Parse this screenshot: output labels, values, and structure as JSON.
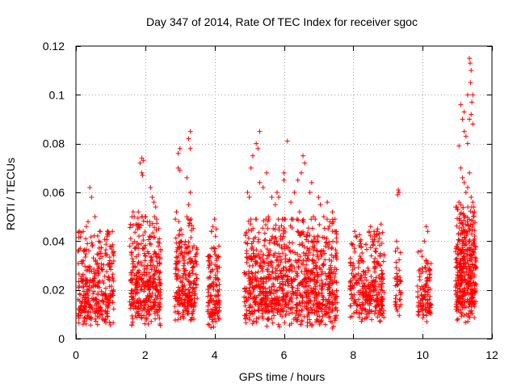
{
  "chart_data": {
    "type": "scatter",
    "title": "Day 347 of 2014, Rate Of TEC Index for receiver sgoc",
    "xlabel": "GPS time / hours",
    "ylabel": "ROTI / TECUs",
    "xlim": [
      0,
      12
    ],
    "ylim": [
      0,
      0.12
    ],
    "xticks": [
      0,
      2,
      4,
      6,
      8,
      10,
      12
    ],
    "yticks": [
      0,
      0.02,
      0.04,
      0.06,
      0.08,
      0.1,
      0.12
    ],
    "ytick_labels": [
      "0",
      "0.02",
      "0.04",
      "0.06",
      "0.08",
      "0.1",
      "0.12"
    ],
    "grid": true,
    "marker": "+",
    "color": "#ff0000",
    "series": [
      {
        "name": "ROTI",
        "clusters": [
          {
            "x_range": [
              0.05,
              1.1
            ],
            "y_range": [
              0.004,
              0.04
            ],
            "count": 340,
            "outliers": [
              [
                0.4,
                0.062
              ],
              [
                0.45,
                0.058
              ],
              [
                0.55,
                0.05
              ],
              [
                0.3,
                0.046
              ],
              [
                0.7,
                0.044
              ],
              [
                0.9,
                0.042
              ],
              [
                0.35,
                0.048
              ]
            ]
          },
          {
            "x_range": [
              1.55,
              2.45
            ],
            "y_range": [
              0.004,
              0.046
            ],
            "count": 360,
            "outliers": [
              [
                1.9,
                0.074
              ],
              [
                1.85,
                0.072
              ],
              [
                1.95,
                0.073
              ],
              [
                1.9,
                0.068
              ],
              [
                1.92,
                0.067
              ],
              [
                2.15,
                0.062
              ],
              [
                2.2,
                0.058
              ],
              [
                2.25,
                0.056
              ],
              [
                2.3,
                0.054
              ],
              [
                1.8,
                0.052
              ],
              [
                1.65,
                0.052
              ],
              [
                2.0,
                0.05
              ]
            ]
          },
          {
            "x_range": [
              2.85,
              3.5
            ],
            "y_range": [
              0.006,
              0.045
            ],
            "count": 250,
            "outliers": [
              [
                3.3,
                0.085
              ],
              [
                3.25,
                0.082
              ],
              [
                3.0,
                0.078
              ],
              [
                2.95,
                0.076
              ],
              [
                3.3,
                0.078
              ],
              [
                2.95,
                0.07
              ],
              [
                3.0,
                0.069
              ],
              [
                3.2,
                0.066
              ],
              [
                3.3,
                0.06
              ],
              [
                3.25,
                0.055
              ],
              [
                3.2,
                0.05
              ],
              [
                2.9,
                0.052
              ]
            ]
          },
          {
            "x_range": [
              3.8,
              4.15
            ],
            "y_range": [
              0.004,
              0.04
            ],
            "count": 130,
            "outliers": [
              [
                4.0,
                0.049
              ],
              [
                3.95,
                0.046
              ],
              [
                4.05,
                0.045
              ]
            ]
          },
          {
            "x_range": [
              4.85,
              7.55
            ],
            "y_range": [
              0.004,
              0.045
            ],
            "count": 980,
            "outliers": [
              [
                5.3,
                0.085
              ],
              [
                5.2,
                0.08
              ],
              [
                5.25,
                0.078
              ],
              [
                5.1,
                0.075
              ],
              [
                5.05,
                0.07
              ],
              [
                6.1,
                0.081
              ],
              [
                6.55,
                0.075
              ],
              [
                6.6,
                0.072
              ],
              [
                6.5,
                0.068
              ],
              [
                5.5,
                0.068
              ],
              [
                6.0,
                0.065
              ],
              [
                6.0,
                0.068
              ],
              [
                6.4,
                0.065
              ],
              [
                6.3,
                0.06
              ],
              [
                5.8,
                0.06
              ],
              [
                5.85,
                0.058
              ],
              [
                7.0,
                0.058
              ],
              [
                7.05,
                0.055
              ],
              [
                7.25,
                0.056
              ],
              [
                6.8,
                0.064
              ],
              [
                5.4,
                0.062
              ],
              [
                5.3,
                0.064
              ],
              [
                4.95,
                0.06
              ],
              [
                5.0,
                0.058
              ],
              [
                5.65,
                0.058
              ],
              [
                6.2,
                0.056
              ],
              [
                6.75,
                0.06
              ],
              [
                7.4,
                0.052
              ],
              [
                6.85,
                0.05
              ],
              [
                5.75,
                0.055
              ],
              [
                6.45,
                0.052
              ],
              [
                5.55,
                0.05
              ],
              [
                7.15,
                0.05
              ]
            ]
          },
          {
            "x_range": [
              7.9,
              8.9
            ],
            "y_range": [
              0.006,
              0.04
            ],
            "count": 300,
            "outliers": [
              [
                8.5,
                0.046
              ],
              [
                8.7,
                0.045
              ],
              [
                8.8,
                0.047
              ],
              [
                8.6,
                0.044
              ]
            ]
          },
          {
            "x_range": [
              9.2,
              9.38
            ],
            "y_range": [
              0.008,
              0.035
            ],
            "count": 40,
            "outliers": [
              [
                9.3,
                0.061
              ],
              [
                9.28,
                0.059
              ],
              [
                9.32,
                0.06
              ],
              [
                9.25,
                0.04
              ]
            ]
          },
          {
            "x_range": [
              9.85,
              10.25
            ],
            "y_range": [
              0.006,
              0.032
            ],
            "count": 110,
            "outliers": [
              [
                10.1,
                0.046
              ],
              [
                10.15,
                0.044
              ],
              [
                10.05,
                0.04
              ],
              [
                9.95,
                0.036
              ]
            ]
          },
          {
            "x_range": [
              10.95,
              11.55
            ],
            "y_range": [
              0.005,
              0.05
            ],
            "count": 380,
            "outliers": [
              [
                11.35,
                0.115
              ],
              [
                11.37,
                0.113
              ],
              [
                11.4,
                0.11
              ],
              [
                11.38,
                0.105
              ],
              [
                11.45,
                0.1
              ],
              [
                11.42,
                0.097
              ],
              [
                11.3,
                0.1
              ],
              [
                11.4,
                0.092
              ],
              [
                11.45,
                0.088
              ],
              [
                11.35,
                0.09
              ],
              [
                11.1,
                0.096
              ],
              [
                11.2,
                0.093
              ],
              [
                11.15,
                0.09
              ],
              [
                11.2,
                0.085
              ],
              [
                11.25,
                0.083
              ],
              [
                11.3,
                0.08
              ],
              [
                11.05,
                0.079
              ],
              [
                11.1,
                0.07
              ],
              [
                11.15,
                0.066
              ],
              [
                11.2,
                0.064
              ],
              [
                11.25,
                0.06
              ],
              [
                11.3,
                0.062
              ],
              [
                11.35,
                0.068
              ],
              [
                11.4,
                0.058
              ],
              [
                11.05,
                0.056
              ],
              [
                11.1,
                0.055
              ],
              [
                11.45,
                0.056
              ],
              [
                11.5,
                0.052
              ],
              [
                11.0,
                0.053
              ]
            ]
          }
        ]
      }
    ]
  }
}
